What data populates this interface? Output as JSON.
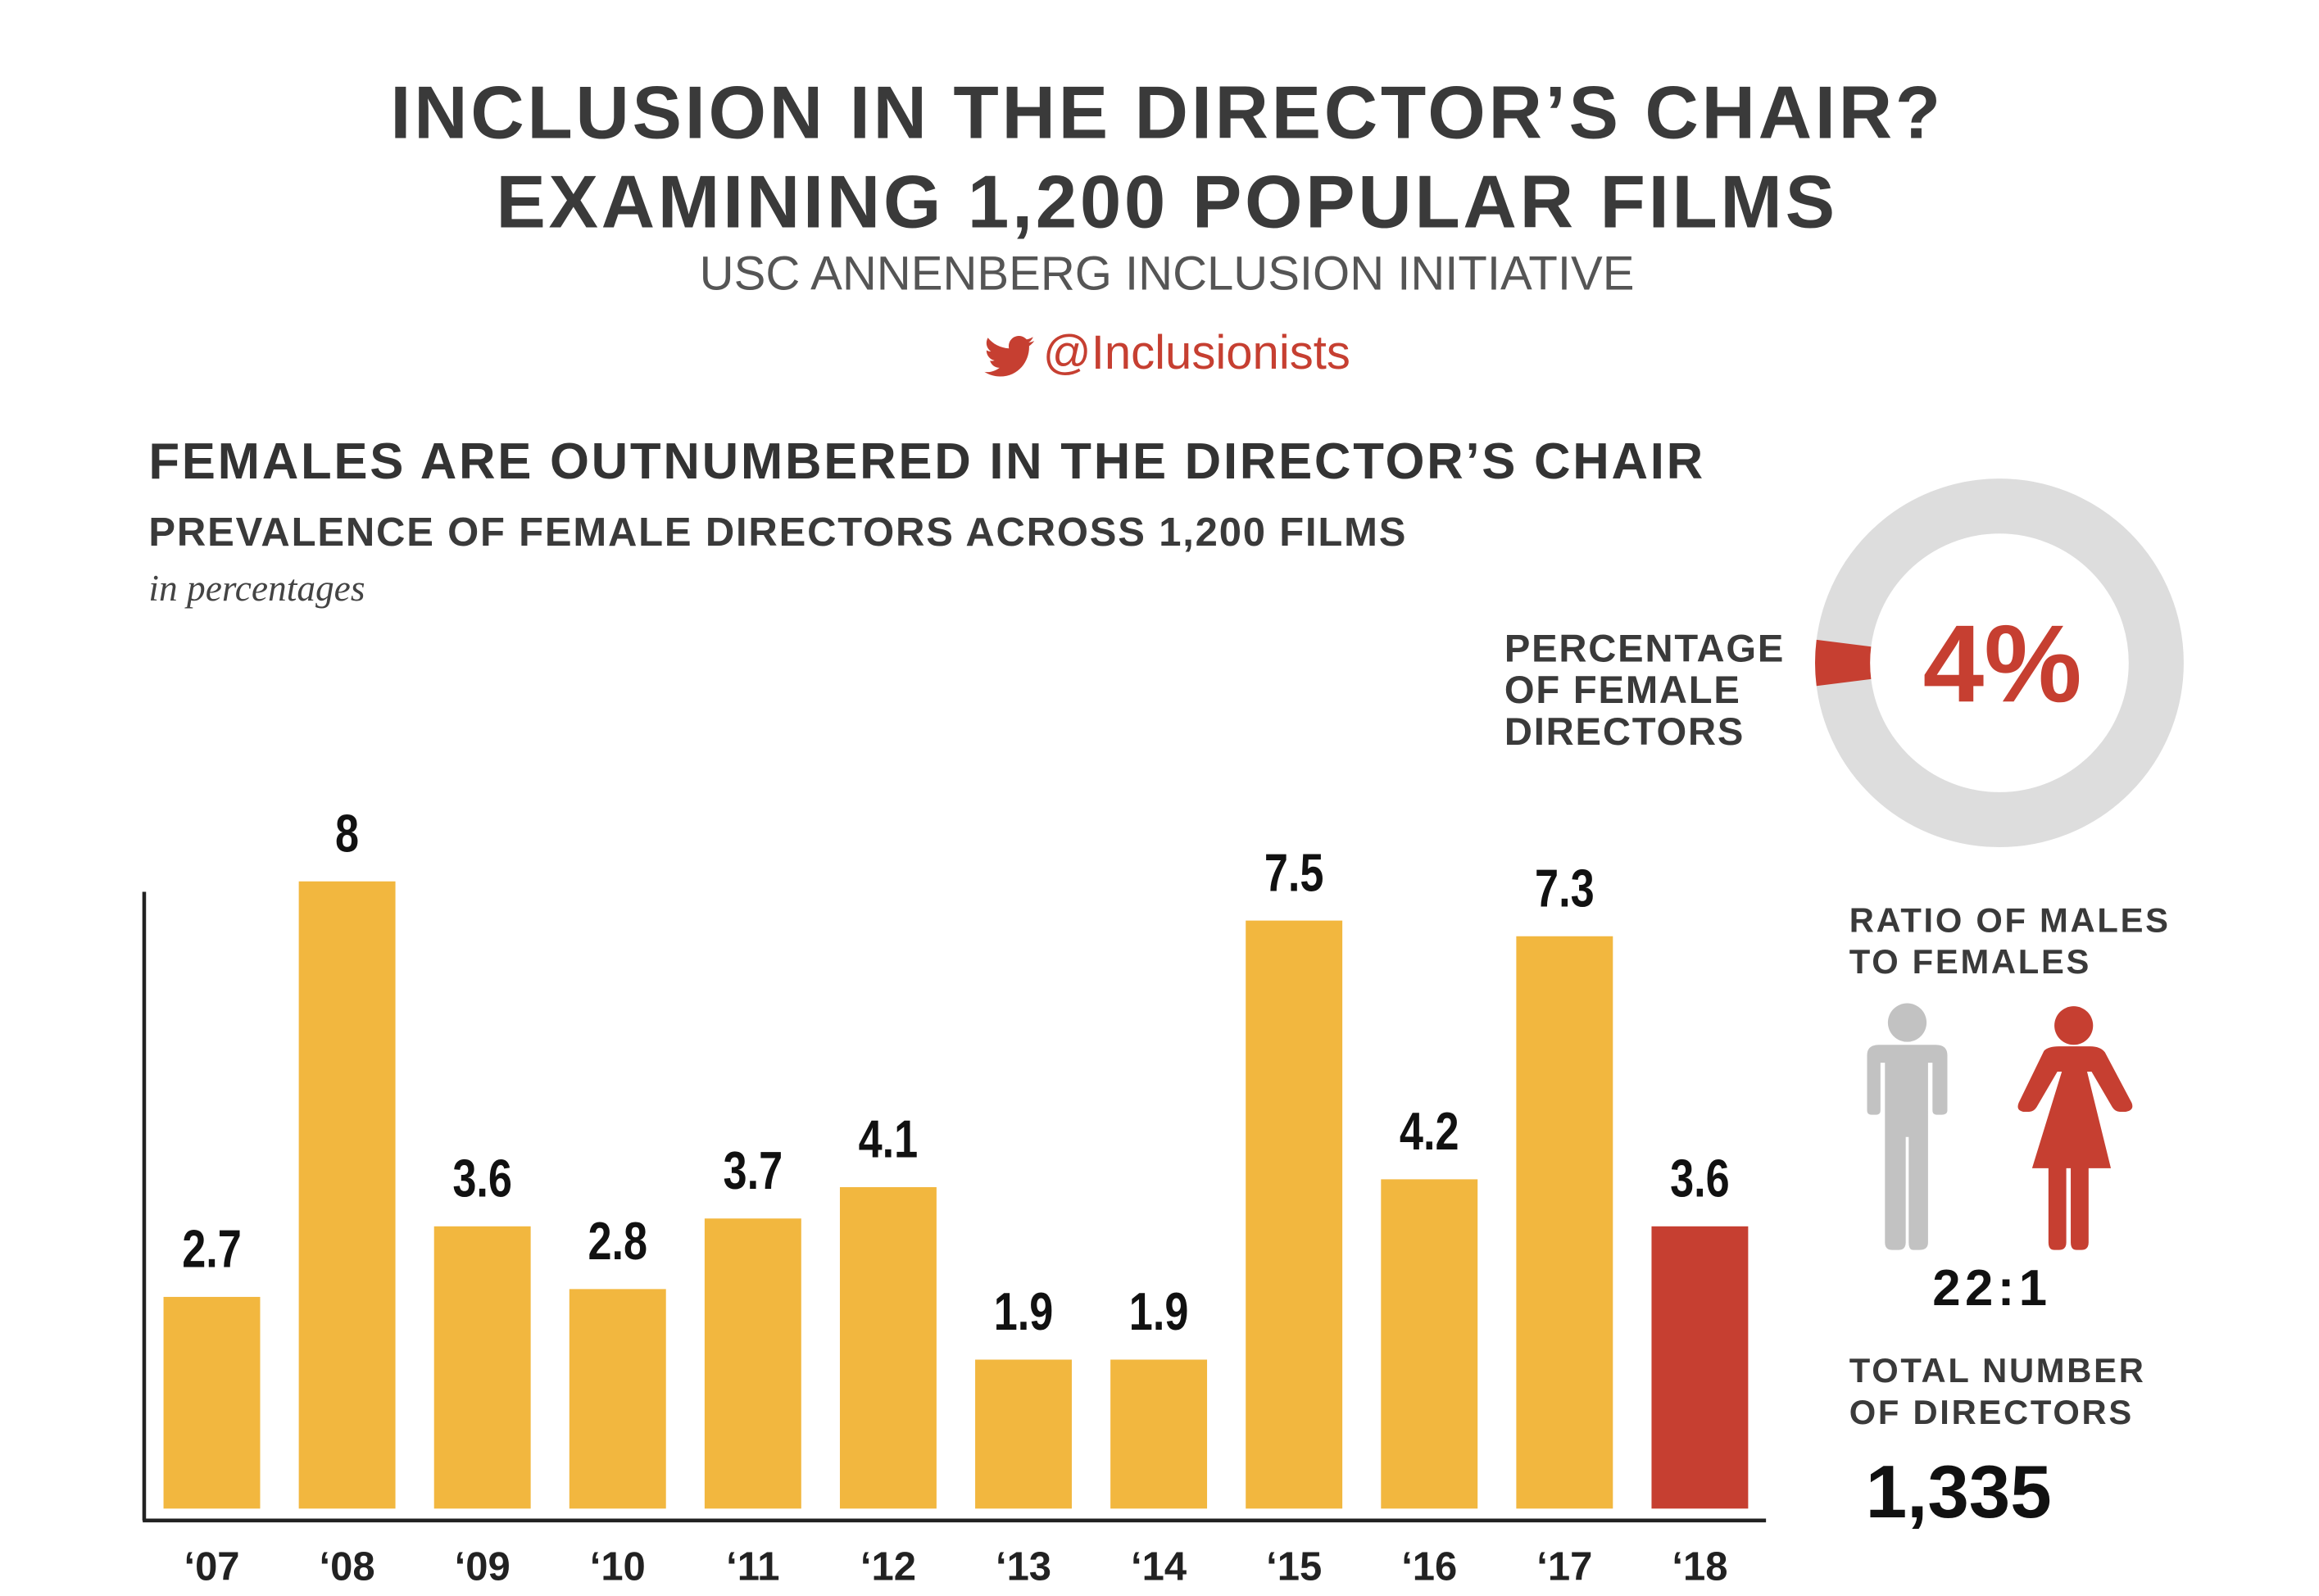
{
  "header": {
    "title_line1": "INCLUSION IN THE DIRECTOR’S CHAIR?",
    "title_line2": "EXAMINING 1,200 POPULAR FILMS",
    "subtitle": "USC ANNENBERG INCLUSION INITIATIVE",
    "twitter_handle": "@Inclusionists",
    "icon": "twitter-bird-icon"
  },
  "section": {
    "heading": "FEMALES ARE OUTNUMBERED IN THE DIRECTOR’S CHAIR",
    "chart_title": "PREVALENCE OF FEMALE DIRECTORS ACROSS 1,200 FILMS",
    "unit": "in percentages"
  },
  "donut": {
    "value_label": "4%",
    "value": 4,
    "label_lines": [
      "PERCENTAGE",
      "OF FEMALE",
      "DIRECTORS"
    ]
  },
  "ratio": {
    "label_lines": [
      "RATIO OF MALES",
      "TO FEMALES"
    ],
    "value": "22:1",
    "icons": [
      "male-figure-icon",
      "female-figure-icon"
    ]
  },
  "total": {
    "label_lines": [
      "TOTAL NUMBER",
      "OF DIRECTORS"
    ],
    "value": "1,335"
  },
  "colors": {
    "bar": "#f2b73f",
    "highlight": "#c63f31",
    "donut_track": "#dddddd",
    "male": "#c2c2c2",
    "text": "#3a3a3a"
  },
  "chart_data": {
    "type": "bar",
    "title": "PREVALENCE OF FEMALE DIRECTORS ACROSS 1,200 FILMS",
    "ylabel": "in percentages",
    "categories": [
      "‘07",
      "‘08",
      "‘09",
      "‘10",
      "‘11",
      "‘12",
      "‘13",
      "‘14",
      "‘15",
      "‘16",
      "‘17",
      "‘18"
    ],
    "values": [
      2.7,
      8,
      3.6,
      2.8,
      3.7,
      4.1,
      1.9,
      1.9,
      7.5,
      4.2,
      7.3,
      3.6
    ],
    "value_labels": [
      "2.7",
      "8",
      "3.6",
      "2.8",
      "3.7",
      "4.1",
      "1.9",
      "1.9",
      "7.5",
      "4.2",
      "7.3",
      "3.6"
    ],
    "highlight_category": "‘18",
    "ylim": [
      0,
      8
    ],
    "grid": false
  }
}
